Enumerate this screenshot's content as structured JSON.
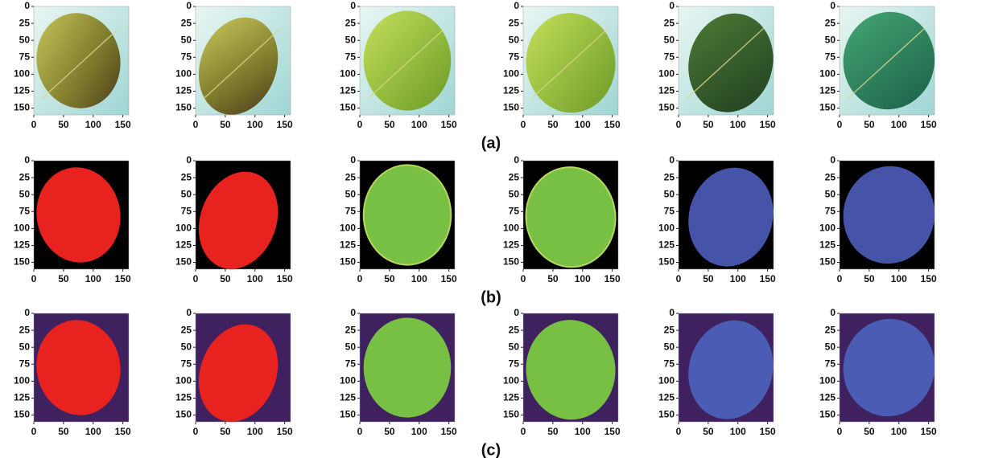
{
  "axes": {
    "yticks": [
      0,
      25,
      50,
      75,
      100,
      125,
      150
    ],
    "xticks": [
      0,
      50,
      100,
      150
    ],
    "range": [
      0,
      160
    ]
  },
  "rows": [
    {
      "label": "(a)"
    },
    {
      "label": "(b)"
    },
    {
      "label": "(c)"
    }
  ]
}
